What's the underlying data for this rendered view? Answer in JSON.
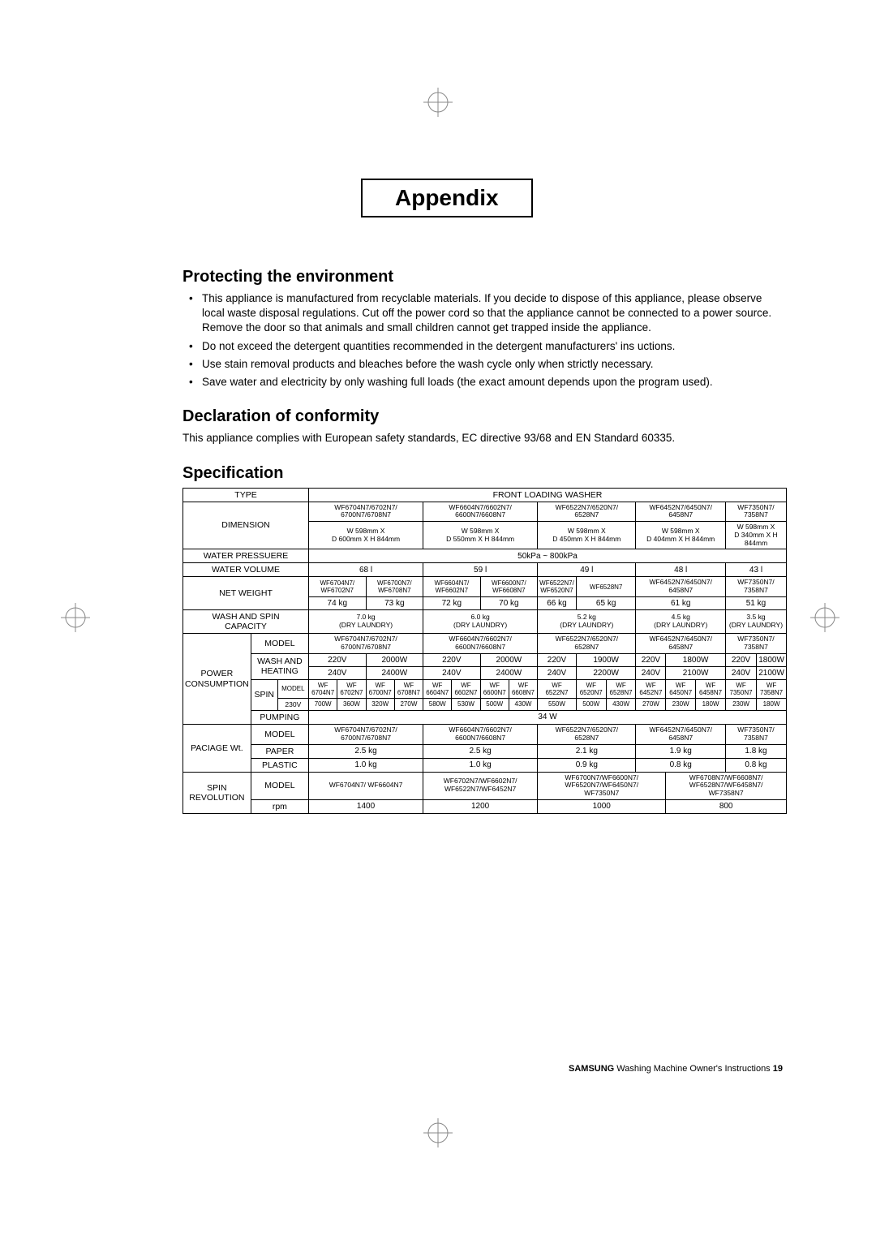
{
  "page_title": "Appendix",
  "sections": {
    "protect": {
      "heading": "Protecting the environment",
      "bullets": [
        "This appliance is manufactured from recyclable materials. If you decide to dispose of this appliance, please observe local waste disposal regulations. Cut off the power cord so that the appliance cannot be connected to a power source. Remove the door so that animals and small children cannot get trapped inside the appliance.",
        "Do not exceed the detergent quantities recommended in the detergent manufacturers' ins uctions.",
        "Use stain removal products and bleaches before the wash cycle only when strictly necessary.",
        "Save water and electricity by only washing full loads (the exact amount depends upon the program used)."
      ]
    },
    "declaration": {
      "heading": "Declaration of conformity",
      "text": "This appliance complies with European safety standards, EC directive 93/68 and EN Standard 60335."
    },
    "spec": {
      "heading": "Specification"
    }
  },
  "spec_table": {
    "type_label": "TYPE",
    "type_value": "FRONT LOADING WASHER",
    "dimension_label": "DIMENSION",
    "dim_models": [
      "WF6704N7/6702N7/\n6700N7/6708N7",
      "WF6604N7/6602N7/\n6600N7/6608N7",
      "WF6522N7/6520N7/\n6528N7",
      "WF6452N7/6450N7/\n6458N7",
      "WF7350N7/\n7358N7"
    ],
    "dim_sizes": [
      "W 598mm X\nD 600mm X H 844mm",
      "W 598mm X\nD 550mm X H 844mm",
      "W 598mm X\nD 450mm X H 844mm",
      "W 598mm X\nD 404mm X H 844mm",
      "W 598mm X\nD 340mm X H 844mm"
    ],
    "water_pressure_label": "WATER PRESSUERE",
    "water_pressure_value": "50kPa ~ 800kPa",
    "water_volume_label": "WATER VOLUME",
    "water_volume": [
      "68 l",
      "59 l",
      "49 l",
      "48 l",
      "43 l"
    ],
    "net_weight_label": "NET WEIGHT",
    "nw_models_row": [
      "WF6704N7/",
      "WF6700N7/",
      "WF6604N7/",
      "WF6600N7/",
      "WF6522N7/",
      "WF6528N7",
      "WF6452N7/6450N7/\n6458N7",
      "WF7350N7/\n7358N7"
    ],
    "nw_models_row2": [
      "WF6702N7",
      "WF6708N7",
      "WF6602N7",
      "WF6608N7",
      "WF6520N7"
    ],
    "nw_vals": [
      "74 kg",
      "73 kg",
      "72 kg",
      "70 kg",
      "66 kg",
      "65 kg",
      "61 kg",
      "51 kg"
    ],
    "wash_spin_label": "WASH AND SPIN\nCAPACITY",
    "wash_spin_vals": [
      "7.0 kg\n(DRY LAUNDRY)",
      "6.0 kg\n(DRY LAUNDRY)",
      "5.2 kg\n(DRY LAUNDRY)",
      "4.5 kg\n(DRY LAUNDRY)",
      "3.5 kg\n(DRY LAUNDRY)"
    ],
    "power_label": "POWER\nCONSUMPTION",
    "model_label": "MODEL",
    "pc_models": [
      "WF6704N7/6702N7/\n6700N7/6708N7",
      "WF6604N7/6602N7/\n6600N7/6608N7",
      "WF6522N7/6520N7/\n6528N7",
      "WF6452N7/6450N7/\n6458N7",
      "WF7350N7/\n7358N7"
    ],
    "wash_heat_label": "WASH AND\nHEATING",
    "wh_220": [
      "220V",
      "2000W",
      "220V",
      "2000W",
      "220V",
      "1900W",
      "220V",
      "1800W",
      "220V",
      "1800W"
    ],
    "wh_240": [
      "240V",
      "2400W",
      "240V",
      "2400W",
      "240V",
      "2200W",
      "240V",
      "2100W",
      "240V",
      "2100W"
    ],
    "spin_label": "SPIN",
    "spin_model_hdr": "MODEL",
    "spin_models": [
      "WF\n6704N7",
      "WF\n6702N7",
      "WF\n6700N7",
      "WF\n6708N7",
      "WF\n6604N7",
      "WF\n6602N7",
      "WF\n6600N7",
      "WF\n6608N7",
      "WF\n6522N7",
      "WF\n6520N7",
      "WF\n6528N7",
      "WF\n6452N7",
      "WF\n6450N7",
      "WF\n6458N7",
      "WF\n7350N7",
      "WF\n7358N7"
    ],
    "v230_label": "230V",
    "v230_vals": [
      "700W",
      "360W",
      "320W",
      "270W",
      "580W",
      "530W",
      "500W",
      "430W",
      "550W",
      "500W",
      "430W",
      "270W",
      "230W",
      "180W",
      "230W",
      "180W"
    ],
    "pumping_label": "PUMPING",
    "pumping_value": "34 W",
    "package_label": "PACIAGE Wt.",
    "pkg_model_hdr": "MODEL",
    "pkg_models": [
      "WF6704N7/6702N7/\n6700N7/6708N7",
      "WF6604N7/6602N7/\n6600N7/6608N7",
      "WF6522N7/6520N7/\n6528N7",
      "WF6452N7/6450N7/\n6458N7",
      "WF7350N7/\n7358N7"
    ],
    "paper_label": "PAPER",
    "paper_vals": [
      "2.5 kg",
      "2.5 kg",
      "2.1 kg",
      "1.9 kg",
      "1.8 kg"
    ],
    "plastic_label": "PLASTIC",
    "plastic_vals": [
      "1.0 kg",
      "1.0 kg",
      "0.9 kg",
      "0.8 kg",
      "0.8 kg"
    ],
    "spin_rev_label": "SPIN\nREVOLUTION",
    "sr_model_hdr": "MODEL",
    "sr_models": [
      "WF6704N7/ WF6604N7",
      "WF6702N7/WF6602N7/\nWF6522N7/WF6452N7",
      "WF6700N7/WF6600N7/\nWF6520N7/WF6450N7/\nWF7350N7",
      "WF6708N7/WF6608N7/\nWF6528N7/WF6458N7/\nWF7358N7"
    ],
    "rpm_label": "rpm",
    "rpm_vals": [
      "1400",
      "1200",
      "1000",
      "800"
    ]
  },
  "footer": {
    "brand": "SAMSUNG",
    "doc": " Washing Machine Owner's Instructions   ",
    "page": "19"
  }
}
